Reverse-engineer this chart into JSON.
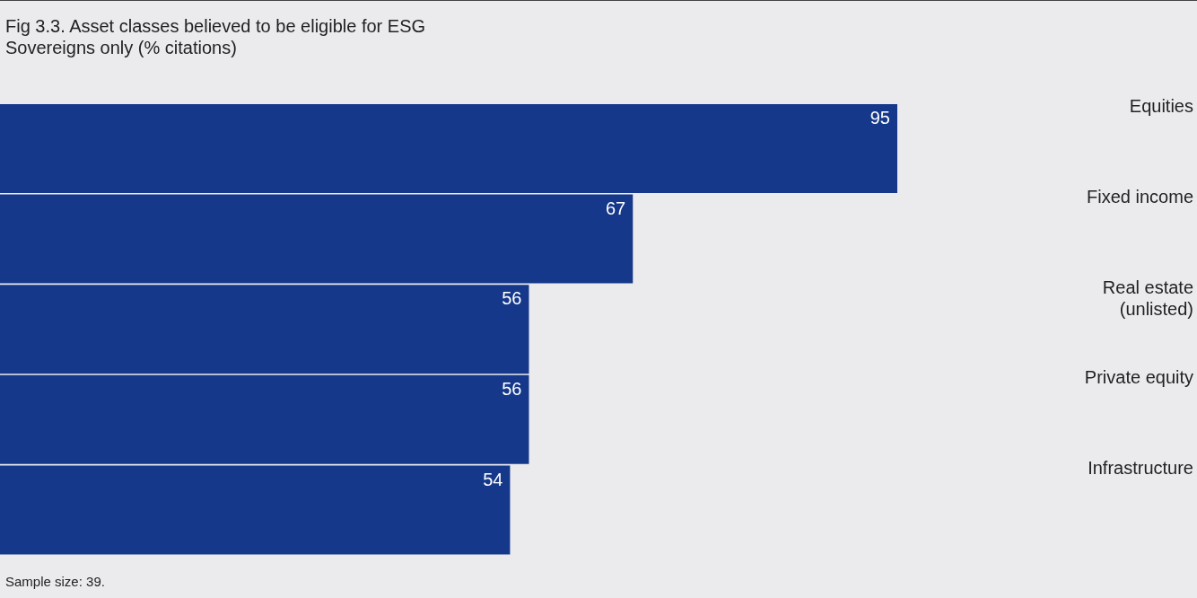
{
  "chart_data": {
    "type": "bar",
    "orientation": "horizontal",
    "title": "Fig 3.3. Asset classes believed to be eligible for ESG",
    "subtitle": "Sovereigns only (% citations)",
    "categories": [
      "Equities",
      "Fixed income",
      "Real estate (unlisted)",
      "Private equity",
      "Infrastructure"
    ],
    "values": [
      95,
      67,
      56,
      56,
      54
    ],
    "color": "#15388a",
    "data_labels": true,
    "annotations": [
      "Sample size: 39."
    ]
  }
}
